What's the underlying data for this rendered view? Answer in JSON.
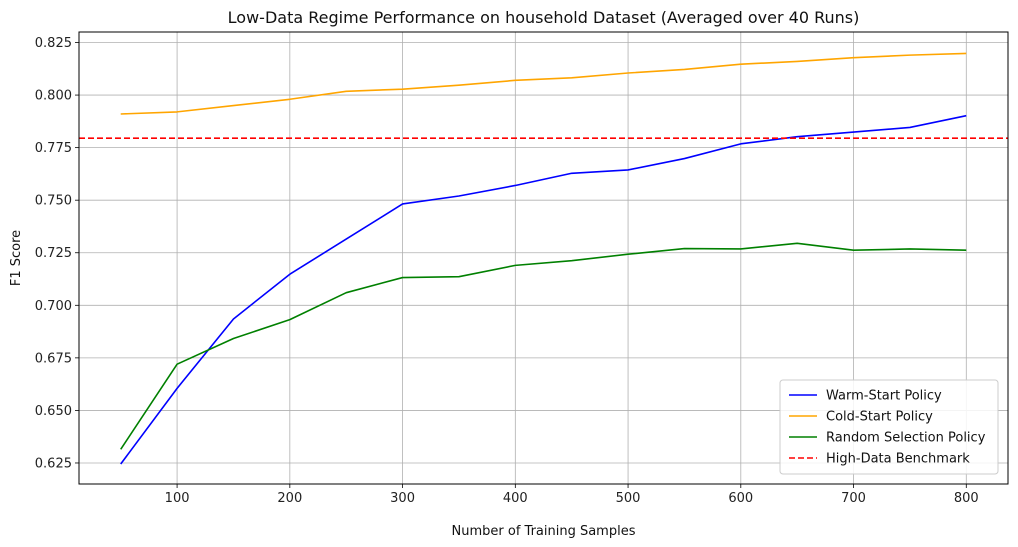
{
  "chart_data": {
    "type": "line",
    "title": "Low-Data Regime Performance on household Dataset (Averaged over 40 Runs)",
    "xlabel": "Number of Training Samples",
    "ylabel": "F1 Score",
    "xlim": [
      13,
      837
    ],
    "ylim": [
      0.615,
      0.83
    ],
    "x_ticks": [
      100,
      200,
      300,
      400,
      500,
      600,
      700,
      800
    ],
    "y_ticks": [
      0.625,
      0.65,
      0.675,
      0.7,
      0.725,
      0.75,
      0.775,
      0.8,
      0.825
    ],
    "x_tick_labels": [
      "100",
      "200",
      "300",
      "400",
      "500",
      "600",
      "700",
      "800"
    ],
    "y_tick_labels": [
      "0.625",
      "0.650",
      "0.675",
      "0.700",
      "0.725",
      "0.750",
      "0.775",
      "0.800",
      "0.825"
    ],
    "grid": true,
    "legend_position": "lower right",
    "x": [
      50,
      100,
      150,
      200,
      250,
      300,
      350,
      400,
      450,
      500,
      550,
      600,
      650,
      700,
      750,
      800
    ],
    "series": [
      {
        "name": "Warm-Start Policy",
        "color": "#0000ff",
        "dash": "solid",
        "values": [
          0.6245,
          0.6605,
          0.6935,
          0.7148,
          0.7315,
          0.7482,
          0.752,
          0.757,
          0.7628,
          0.7644,
          0.7698,
          0.7768,
          0.7802,
          0.7824,
          0.7846,
          0.7902
        ]
      },
      {
        "name": "Cold-Start Policy",
        "color": "#ffa500",
        "dash": "solid",
        "values": [
          0.791,
          0.792,
          0.795,
          0.798,
          0.8018,
          0.8028,
          0.8047,
          0.807,
          0.8082,
          0.8105,
          0.8122,
          0.8147,
          0.816,
          0.8178,
          0.819,
          0.8198
        ]
      },
      {
        "name": "Random Selection Policy",
        "color": "#008000",
        "dash": "solid",
        "values": [
          0.6315,
          0.672,
          0.6842,
          0.6932,
          0.706,
          0.7132,
          0.7136,
          0.719,
          0.7212,
          0.7243,
          0.727,
          0.7268,
          0.7295,
          0.7262,
          0.7268,
          0.7262
        ]
      }
    ],
    "reference_lines": [
      {
        "name": "High-Data Benchmark",
        "color": "#ff0000",
        "dash": "dashed",
        "y": 0.7795
      }
    ]
  }
}
